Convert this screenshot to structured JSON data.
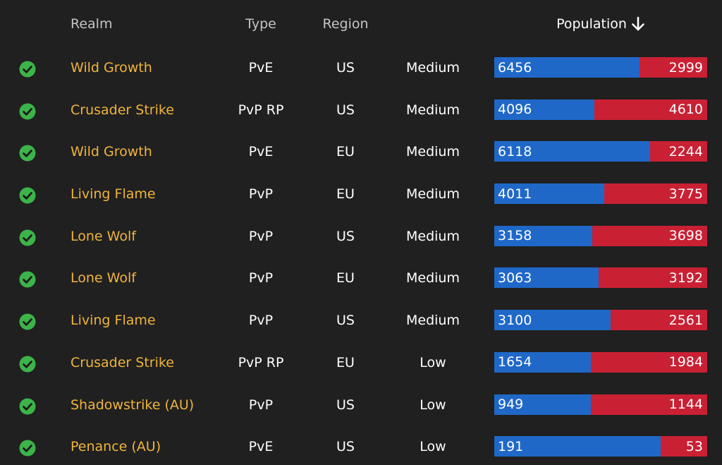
{
  "header": {
    "realm": "Realm",
    "type": "Type",
    "region": "Region",
    "population": "Population"
  },
  "icons": {
    "status": "check-circle-icon",
    "sort": "arrow-down-icon"
  },
  "colors": {
    "background": "#202020",
    "realm_name": "#f0b43c",
    "alliance": "#1f68c8",
    "horde": "#c92034",
    "status_ok": "#3cb44a"
  },
  "rows": [
    {
      "realm": "Wild Growth",
      "type": "PvE",
      "region": "US",
      "population": "Medium",
      "alliance": 6456,
      "horde": 2999
    },
    {
      "realm": "Crusader Strike",
      "type": "PvP RP",
      "region": "US",
      "population": "Medium",
      "alliance": 4096,
      "horde": 4610
    },
    {
      "realm": "Wild Growth",
      "type": "PvE",
      "region": "EU",
      "population": "Medium",
      "alliance": 6118,
      "horde": 2244
    },
    {
      "realm": "Living Flame",
      "type": "PvP",
      "region": "EU",
      "population": "Medium",
      "alliance": 4011,
      "horde": 3775
    },
    {
      "realm": "Lone Wolf",
      "type": "PvP",
      "region": "US",
      "population": "Medium",
      "alliance": 3158,
      "horde": 3698
    },
    {
      "realm": "Lone Wolf",
      "type": "PvP",
      "region": "EU",
      "population": "Medium",
      "alliance": 3063,
      "horde": 3192
    },
    {
      "realm": "Living Flame",
      "type": "PvP",
      "region": "US",
      "population": "Medium",
      "alliance": 3100,
      "horde": 2561
    },
    {
      "realm": "Crusader Strike",
      "type": "PvP RP",
      "region": "EU",
      "population": "Low",
      "alliance": 1654,
      "horde": 1984
    },
    {
      "realm": "Shadowstrike (AU)",
      "type": "PvP",
      "region": "US",
      "population": "Low",
      "alliance": 949,
      "horde": 1144
    },
    {
      "realm": "Penance (AU)",
      "type": "PvE",
      "region": "US",
      "population": "Low",
      "alliance": 191,
      "horde": 53
    }
  ]
}
